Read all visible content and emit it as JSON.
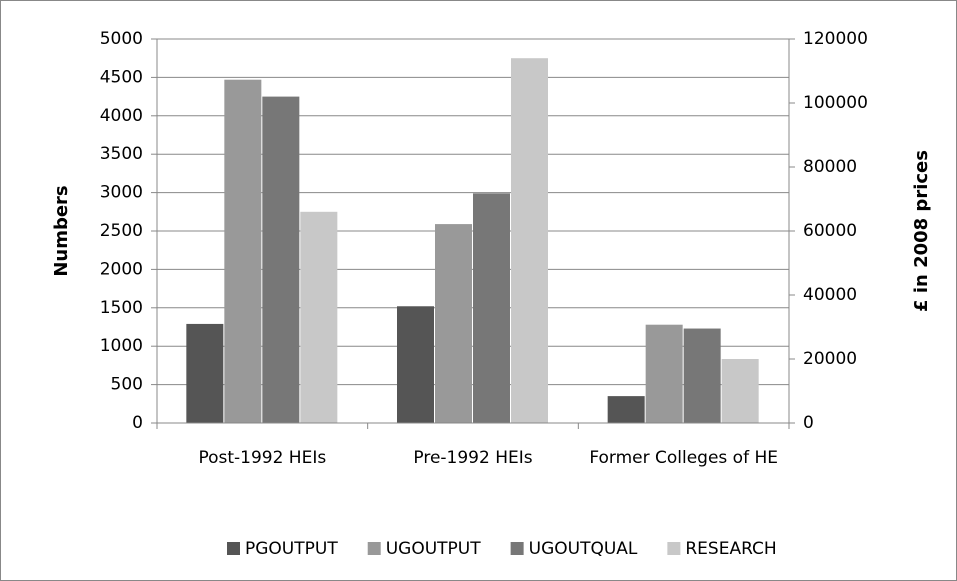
{
  "chart_data": {
    "type": "bar",
    "categories": [
      "Post-1992 HEIs",
      "Pre-1992  HEIs",
      "Former Colleges of HE"
    ],
    "series": [
      {
        "name": "PGOUTPUT",
        "color": "#555555",
        "values": [
          1290,
          1520,
          350
        ]
      },
      {
        "name": "UGOUTPUT",
        "color": "#999999",
        "values": [
          4470,
          2590,
          1280
        ]
      },
      {
        "name": "UGOUTQUAL",
        "color": "#777777",
        "values": [
          4250,
          2990,
          1230
        ]
      },
      {
        "name": "RESEARCH",
        "color": "#c8c8c8",
        "values": [
          66000,
          114000,
          20000
        ],
        "axis": "y2"
      }
    ],
    "ylabel": "Numbers",
    "y2label": "£ in 2008 prices",
    "ylim": [
      0,
      5000
    ],
    "yticks": [
      0,
      500,
      1000,
      1500,
      2000,
      2500,
      3000,
      3500,
      4000,
      4500,
      5000
    ],
    "y2lim": [
      0,
      120000
    ],
    "y2ticks": [
      0,
      20000,
      40000,
      60000,
      80000,
      100000,
      120000
    ],
    "grid": true,
    "legend": "bottom"
  }
}
